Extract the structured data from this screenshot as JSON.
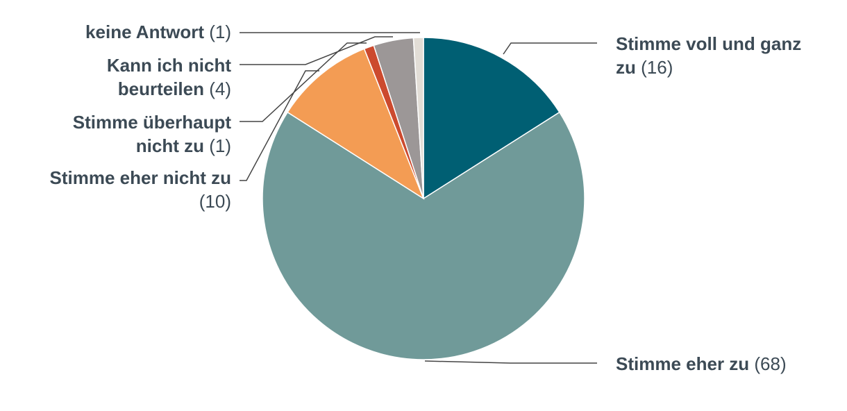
{
  "chart_data": {
    "type": "pie",
    "start_angle_deg": 0,
    "direction": "clockwise",
    "slices": [
      {
        "label": "Stimme voll und ganz zu",
        "label_lines": [
          "Stimme voll und ganz",
          "zu"
        ],
        "count_text": "(16)",
        "value": 16,
        "color": "#005f73"
      },
      {
        "label": "Stimme eher zu",
        "label_lines": [
          "Stimme eher zu"
        ],
        "count_text": "(68)",
        "value": 68,
        "color": "#709a99"
      },
      {
        "label": "Stimme eher nicht zu",
        "label_lines": [
          "Stimme eher nicht zu",
          ""
        ],
        "count_text": "(10)",
        "value": 10,
        "color": "#f39c54"
      },
      {
        "label": "Stimme überhaupt nicht zu",
        "label_lines": [
          "Stimme überhaupt",
          "nicht zu"
        ],
        "count_text": "(1)",
        "value": 1,
        "color": "#cc4a2e"
      },
      {
        "label": "Kann ich nicht beurteilen",
        "label_lines": [
          "Kann ich nicht",
          "beurteilen"
        ],
        "count_text": "(4)",
        "value": 4,
        "color": "#9c9797"
      },
      {
        "label": "keine Antwort",
        "label_lines": [
          "keine Antwort"
        ],
        "count_text": "(1)",
        "value": 1,
        "color": "#e2ddd6"
      }
    ],
    "colors": {
      "text": "#3c4a55",
      "leader": "#444444",
      "background": "#ffffff"
    }
  }
}
